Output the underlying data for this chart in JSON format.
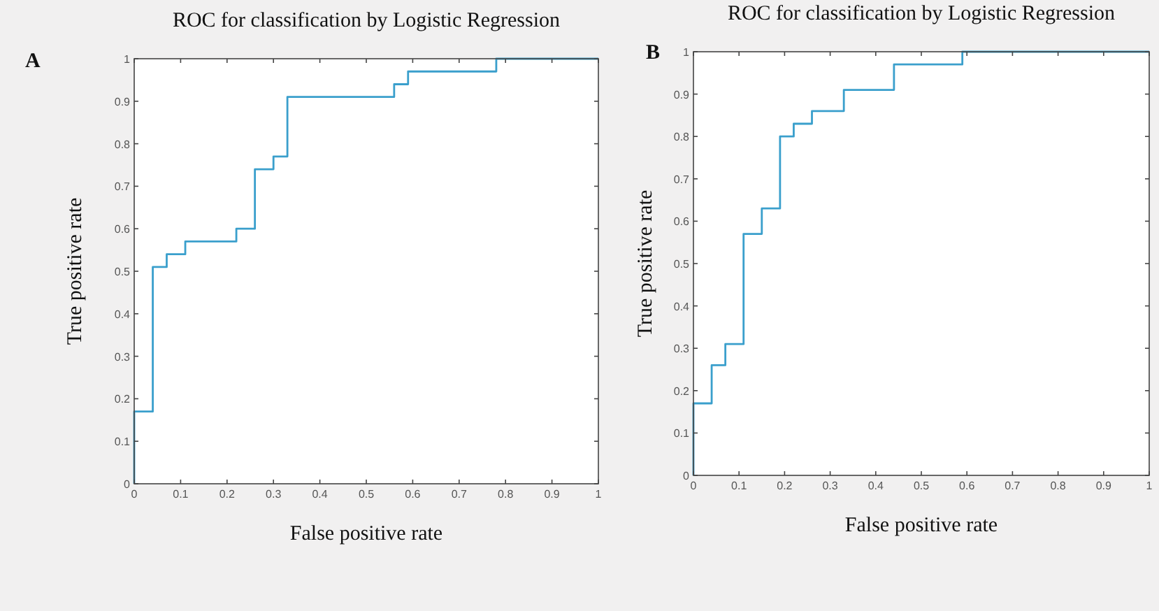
{
  "chart_data": [
    {
      "type": "step",
      "title": "ROC for classification by Logistic Regression",
      "xlabel": "False positive rate",
      "ylabel": "True positive rate",
      "annotations": [
        "A"
      ],
      "x": [
        0,
        0,
        0.04,
        0.07,
        0.11,
        0.22,
        0.26,
        0.3,
        0.33,
        0.56,
        0.59,
        0.78,
        1
      ],
      "values": [
        0,
        0.17,
        0.51,
        0.54,
        0.57,
        0.6,
        0.74,
        0.77,
        0.91,
        0.94,
        0.97,
        1,
        1
      ],
      "color": "#3a9fcc",
      "xlim": [
        0,
        1
      ],
      "ylim": [
        0,
        1
      ],
      "xticks": [
        0,
        0.1,
        0.2,
        0.3,
        0.4,
        0.5,
        0.6,
        0.7,
        0.8,
        0.9,
        1
      ],
      "yticks": [
        0,
        0.1,
        0.2,
        0.3,
        0.4,
        0.5,
        0.6,
        0.7,
        0.8,
        0.9,
        1
      ]
    },
    {
      "type": "step",
      "title": "ROC for classification by Logistic Regression",
      "xlabel": "False positive rate",
      "ylabel": "True positive rate",
      "annotations": [
        "B"
      ],
      "x": [
        0,
        0,
        0.04,
        0.07,
        0.11,
        0.15,
        0.19,
        0.22,
        0.26,
        0.33,
        0.44,
        0.59,
        1
      ],
      "values": [
        0,
        0.17,
        0.26,
        0.31,
        0.57,
        0.63,
        0.8,
        0.83,
        0.86,
        0.91,
        0.97,
        1,
        1
      ],
      "color": "#3a9fcc",
      "xlim": [
        0,
        1
      ],
      "ylim": [
        0,
        1
      ],
      "xticks": [
        0,
        0.1,
        0.2,
        0.3,
        0.4,
        0.5,
        0.6,
        0.7,
        0.8,
        0.9,
        1
      ],
      "yticks": [
        0,
        0.1,
        0.2,
        0.3,
        0.4,
        0.5,
        0.6,
        0.7,
        0.8,
        0.9,
        1
      ]
    }
  ]
}
